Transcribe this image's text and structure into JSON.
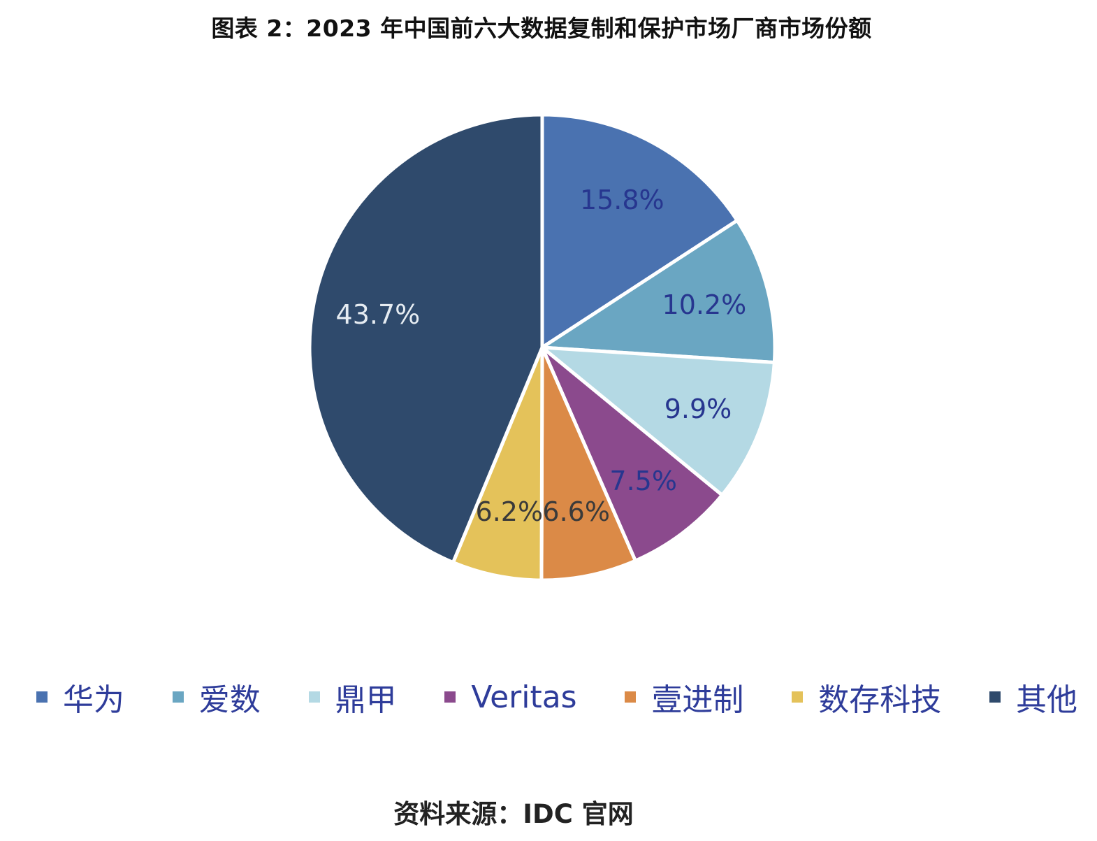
{
  "title": "图表 2：2023 年中国前六大数据复制和保护市场厂商市场份额",
  "source": "资料来源：IDC 官网",
  "chart_data": {
    "type": "pie",
    "title": "图表 2：2023 年中国前六大数据复制和保护市场厂商市场份额",
    "unit": "%",
    "legend_position": "bottom",
    "slices": [
      {
        "name": "华为",
        "value": 15.8,
        "label": "15.8%",
        "color": "#4a72b0",
        "label_color": "#27368f"
      },
      {
        "name": "爱数",
        "value": 10.2,
        "label": "10.2%",
        "color": "#6aa6c2",
        "label_color": "#27368f"
      },
      {
        "name": "鼎甲",
        "value": 9.9,
        "label": "9.9%",
        "color": "#b4d9e4",
        "label_color": "#27368f"
      },
      {
        "name": "Veritas",
        "value": 7.5,
        "label": "7.5%",
        "color": "#8b4a8d",
        "label_color": "#27368f"
      },
      {
        "name": "壹进制",
        "value": 6.6,
        "label": "6.6%",
        "color": "#db8a47",
        "label_color": "#3a3a3a"
      },
      {
        "name": "数存科技",
        "value": 6.2,
        "label": "6.2%",
        "color": "#e4c25a",
        "label_color": "#3a3a3a"
      },
      {
        "name": "其他",
        "value": 43.7,
        "label": "43.7%",
        "color": "#2f4a6c",
        "label_color": "#e6ecf2"
      }
    ]
  }
}
